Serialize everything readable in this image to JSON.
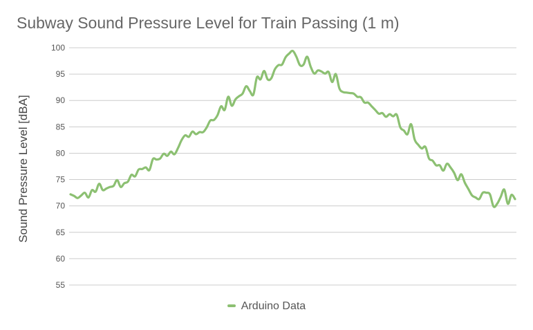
{
  "chart_data": {
    "type": "line",
    "title": "Subway Sound Pressure Level for Train Passing (1 m)",
    "xlabel": "",
    "ylabel": "Sound Pressure Level [dBA]",
    "ylim": [
      55,
      100
    ],
    "yticks": [
      55,
      60,
      65,
      70,
      75,
      80,
      85,
      90,
      95,
      100
    ],
    "grid": true,
    "legend_position": "bottom",
    "series": [
      {
        "name": "Arduino Data",
        "color": "#8cc072",
        "values": [
          72.2,
          71.9,
          71.5,
          72.0,
          72.5,
          71.6,
          73.0,
          72.7,
          74.2,
          73.0,
          73.3,
          73.6,
          73.8,
          74.9,
          73.6,
          74.3,
          74.6,
          75.9,
          75.6,
          76.9,
          77.0,
          77.3,
          76.8,
          78.9,
          78.8,
          79.0,
          79.9,
          79.5,
          80.3,
          79.8,
          81.0,
          82.5,
          83.4,
          83.1,
          84.1,
          83.6,
          84.0,
          84.0,
          84.9,
          86.2,
          86.3,
          87.2,
          88.9,
          88.2,
          90.7,
          89.0,
          90.2,
          90.8,
          91.3,
          92.7,
          91.8,
          91.1,
          94.4,
          94.0,
          95.6,
          94.0,
          94.2,
          95.9,
          96.7,
          96.8,
          98.2,
          98.9,
          99.4,
          98.3,
          96.7,
          96.8,
          98.3,
          96.4,
          95.1,
          95.7,
          95.5,
          95.1,
          95.4,
          93.5,
          95.0,
          92.3,
          91.6,
          91.5,
          91.4,
          91.3,
          90.7,
          90.6,
          89.6,
          89.6,
          88.9,
          88.2,
          87.5,
          87.6,
          86.9,
          87.4,
          87.0,
          87.3,
          84.9,
          84.3,
          83.6,
          85.5,
          82.6,
          81.6,
          80.9,
          81.2,
          79.0,
          78.6,
          77.7,
          77.7,
          76.7,
          78.0,
          77.3,
          76.3,
          74.9,
          76.0,
          74.4,
          73.2,
          72.0,
          71.6,
          71.3,
          72.5,
          72.5,
          72.2,
          69.9,
          70.4,
          71.7,
          73.1,
          70.4,
          72.1,
          71.3
        ]
      }
    ]
  },
  "legend": {
    "label": "Arduino Data",
    "color": "#8cc072"
  }
}
